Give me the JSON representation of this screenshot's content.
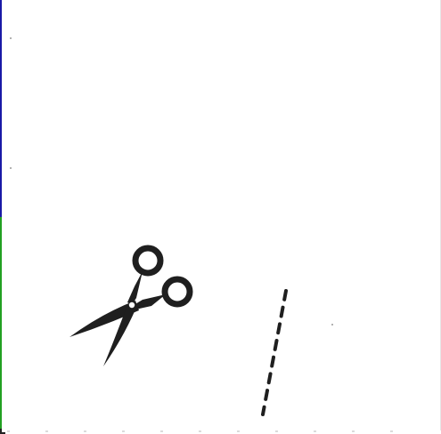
{
  "scene": {
    "background_color": "#ffffff",
    "ink_color": "#1f1f1f",
    "edge_colors": {
      "upper": "#1a1aa6",
      "lower": "#22a022"
    },
    "objects": [
      {
        "icon": "scissors-icon"
      },
      {
        "icon": "dashed-cut-line"
      }
    ]
  }
}
